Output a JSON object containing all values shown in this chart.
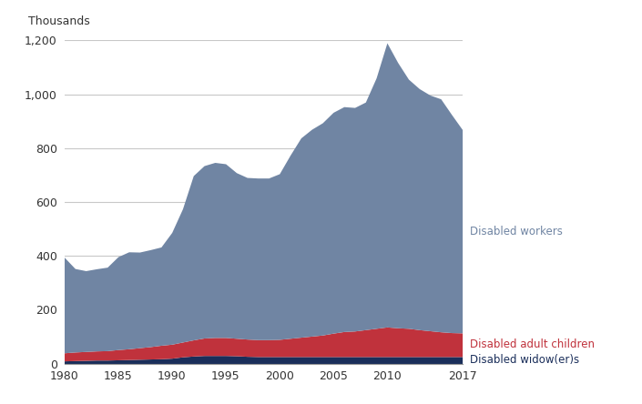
{
  "years": [
    1980,
    1981,
    1982,
    1983,
    1984,
    1985,
    1986,
    1987,
    1988,
    1989,
    1990,
    1991,
    1992,
    1993,
    1994,
    1995,
    1996,
    1997,
    1998,
    1999,
    2000,
    2001,
    2002,
    2003,
    2004,
    2005,
    2006,
    2007,
    2008,
    2009,
    2010,
    2011,
    2012,
    2013,
    2014,
    2015,
    2016,
    2017
  ],
  "disabled_workers": [
    355,
    310,
    300,
    305,
    310,
    345,
    360,
    355,
    360,
    365,
    415,
    495,
    610,
    640,
    650,
    645,
    615,
    600,
    600,
    600,
    615,
    680,
    740,
    768,
    788,
    820,
    835,
    830,
    845,
    930,
    1055,
    985,
    925,
    895,
    875,
    865,
    810,
    755
  ],
  "disabled_adult_children": [
    30,
    32,
    33,
    34,
    35,
    38,
    40,
    43,
    46,
    50,
    52,
    55,
    60,
    65,
    67,
    67,
    65,
    64,
    63,
    63,
    64,
    68,
    72,
    76,
    80,
    87,
    93,
    95,
    100,
    105,
    110,
    107,
    105,
    100,
    96,
    92,
    89,
    88
  ],
  "disabled_widowers": [
    10,
    11,
    12,
    13,
    13,
    14,
    15,
    16,
    17,
    18,
    20,
    25,
    28,
    30,
    30,
    30,
    29,
    27,
    26,
    26,
    26,
    26,
    26,
    26,
    26,
    26,
    26,
    26,
    26,
    26,
    26,
    26,
    26,
    26,
    26,
    26,
    26,
    26
  ],
  "color_workers": "#7085a3",
  "color_adult_children": "#c0323c",
  "color_widowers": "#1a2e5a",
  "label_workers": "Disabled workers",
  "label_adult_children": "Disabled adult children",
  "label_widowers": "Disabled widow(er)s",
  "ylabel": "Thousands",
  "ylim": [
    0,
    1200
  ],
  "yticks": [
    0,
    200,
    400,
    600,
    800,
    1000,
    1200
  ],
  "xlim": [
    1980,
    2017
  ],
  "xticks": [
    1980,
    1985,
    1990,
    1995,
    2000,
    2005,
    2010,
    2017
  ],
  "background_color": "#ffffff",
  "grid_color": "#c8c8c8"
}
